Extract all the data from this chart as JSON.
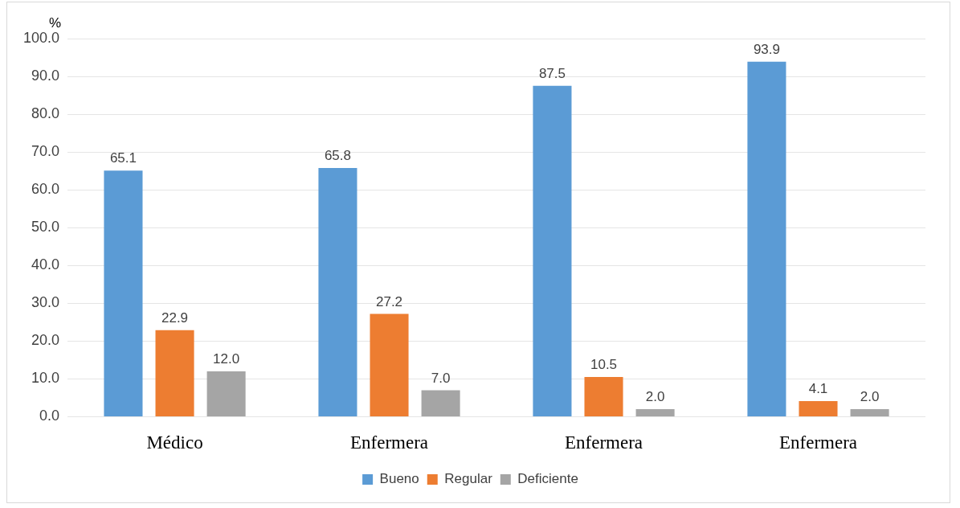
{
  "chart_data": {
    "type": "bar",
    "ylabel": "%",
    "categories": [
      "Médico",
      "Enfermera",
      "Enfermera",
      "Enfermera"
    ],
    "series": [
      {
        "name": "Bueno",
        "color": "#5b9bd5",
        "values": [
          65.1,
          65.8,
          87.5,
          93.9
        ],
        "value_labels": [
          "65.1",
          "65.8",
          "87.5",
          "93.9"
        ]
      },
      {
        "name": "Regular",
        "color": "#ed7d31",
        "values": [
          22.9,
          27.2,
          10.5,
          4.1
        ],
        "value_labels": [
          "22.9",
          "27.2",
          "10.5",
          "4.1"
        ]
      },
      {
        "name": "Deficiente",
        "color": "#a5a5a5",
        "values": [
          12.0,
          7.0,
          2.0,
          2.0
        ],
        "value_labels": [
          "12.0",
          "7.0",
          "2.0",
          "2.0"
        ]
      }
    ],
    "ylim": [
      0,
      100
    ],
    "yticks": [
      {
        "value": 0,
        "label": "0.0"
      },
      {
        "value": 10,
        "label": "10.0"
      },
      {
        "value": 20,
        "label": "20.0"
      },
      {
        "value": 30,
        "label": "30.0"
      },
      {
        "value": 40,
        "label": "40.0"
      },
      {
        "value": 50,
        "label": "50.0"
      },
      {
        "value": 60,
        "label": "60.0"
      },
      {
        "value": 70,
        "label": "70.0"
      },
      {
        "value": 80,
        "label": "80.0"
      },
      {
        "value": 90,
        "label": "90.0"
      },
      {
        "value": 100,
        "label": "100.0"
      }
    ],
    "grid": "y",
    "legend": "bottom"
  }
}
